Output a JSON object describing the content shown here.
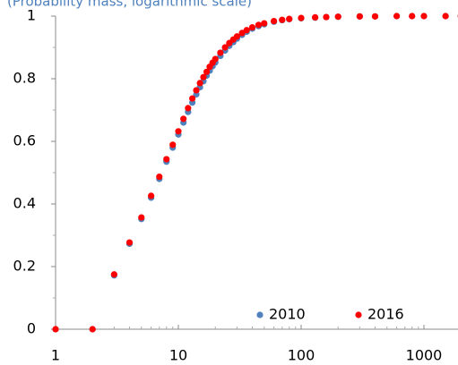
{
  "chart_data": {
    "type": "scatter",
    "subtitle": "(Probability mass, logarithmic scale)",
    "x": [
      1,
      2,
      3,
      4,
      5,
      6,
      7,
      8,
      9,
      10,
      11,
      12,
      13,
      14,
      15,
      16,
      17,
      18,
      19,
      20,
      22,
      24,
      26,
      28,
      30,
      33,
      36,
      40,
      45,
      50,
      60,
      70,
      80,
      100,
      130,
      160,
      200,
      300,
      400,
      600,
      800,
      1000,
      1500,
      2000
    ],
    "series": [
      {
        "name": "2010",
        "color": "#4f81bd",
        "values": [
          0,
          0,
          0.172,
          0.273,
          0.352,
          0.42,
          0.48,
          0.535,
          0.58,
          0.622,
          0.66,
          0.694,
          0.724,
          0.75,
          0.773,
          0.792,
          0.81,
          0.826,
          0.84,
          0.852,
          0.873,
          0.89,
          0.905,
          0.917,
          0.928,
          0.94,
          0.95,
          0.96,
          0.968,
          0.974,
          0.982,
          0.987,
          0.99,
          0.993,
          0.995,
          0.997,
          0.998,
          0.999,
          0.999,
          1,
          1,
          1,
          1,
          1
        ]
      },
      {
        "name": "2016",
        "color": "#ff0000",
        "values": [
          0,
          0,
          0.175,
          0.277,
          0.357,
          0.426,
          0.487,
          0.543,
          0.589,
          0.632,
          0.672,
          0.706,
          0.737,
          0.763,
          0.786,
          0.805,
          0.822,
          0.838,
          0.851,
          0.863,
          0.883,
          0.9,
          0.914,
          0.925,
          0.935,
          0.946,
          0.955,
          0.964,
          0.972,
          0.977,
          0.984,
          0.988,
          0.991,
          0.994,
          0.996,
          0.997,
          0.998,
          0.999,
          0.999,
          1,
          1,
          1,
          1,
          1
        ]
      }
    ],
    "xscale": "log",
    "xlim": [
      1,
      2000
    ],
    "xticks": [
      1,
      10,
      100,
      1000
    ],
    "xminorticks": [
      2,
      3,
      4,
      5,
      6,
      7,
      8,
      9,
      20,
      30,
      40,
      50,
      60,
      70,
      80,
      90,
      200,
      300,
      400,
      500,
      600,
      700,
      800,
      900,
      2000
    ],
    "ylim": [
      0,
      1
    ],
    "yticks": [
      0,
      0.2,
      0.4,
      0.6,
      0.8,
      1
    ],
    "yminorticks": [
      0.1,
      0.3,
      0.5,
      0.7,
      0.9
    ],
    "grid": false,
    "legend": "lower right"
  }
}
